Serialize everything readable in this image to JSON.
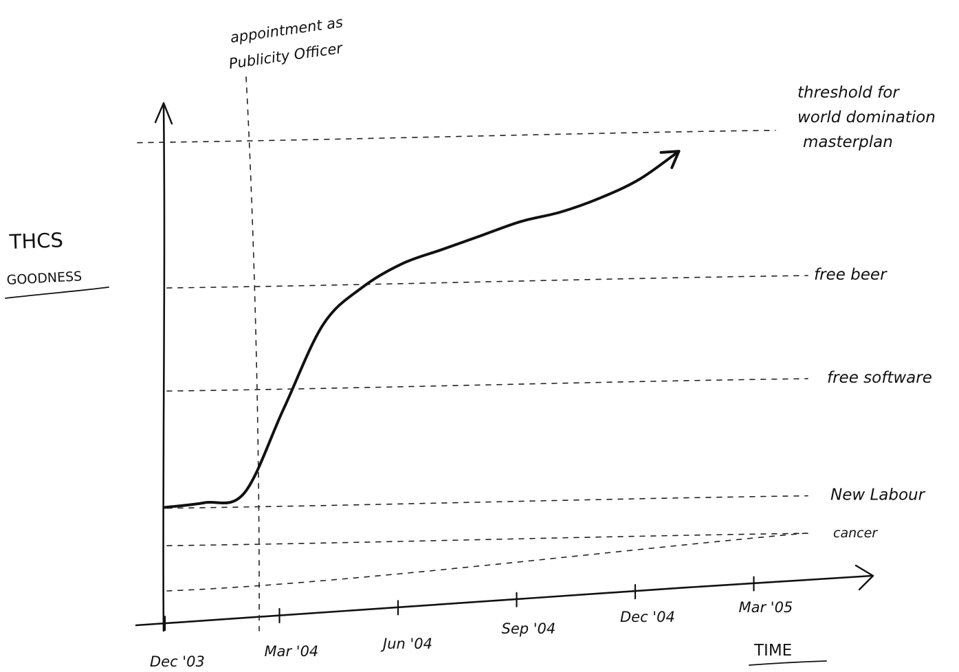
{
  "chart_data": {
    "type": "line",
    "ylabel_line1": "THCS",
    "ylabel_line2": "GOODNESS",
    "xlabel": "TIME",
    "x_ticks": [
      "Dec '03",
      "Mar '04",
      "Jun '04",
      "Sep '04",
      "Dec '04",
      "Mar '05"
    ],
    "xlim": [
      "2003-12",
      "2005-04"
    ],
    "ylim": [
      0,
      100
    ],
    "event_line": {
      "date": "2004-02",
      "label_line1": "appointment as",
      "label_line2": "Publicity Officer"
    },
    "thresholds": [
      {
        "label": "cancer",
        "value": 12
      },
      {
        "label": "New Labour",
        "value": 20
      },
      {
        "label": "free software",
        "value": 45
      },
      {
        "label": "free beer",
        "value": 67
      },
      {
        "label": "threshold for world domination masterplan",
        "value": 98
      }
    ],
    "series": [
      {
        "x": [
          "2003-12",
          "2004-01",
          "2004-02",
          "2004-03",
          "2004-04",
          "2004-05",
          "2004-06",
          "2004-07",
          "2004-08",
          "2004-09",
          "2004-10",
          "2004-11",
          "2004-12",
          "2005-01"
        ],
        "values": [
          19,
          20,
          22,
          40,
          58,
          66,
          71,
          74,
          77,
          80,
          82,
          85,
          89,
          95
        ]
      }
    ],
    "grid": false,
    "legend": "none"
  }
}
